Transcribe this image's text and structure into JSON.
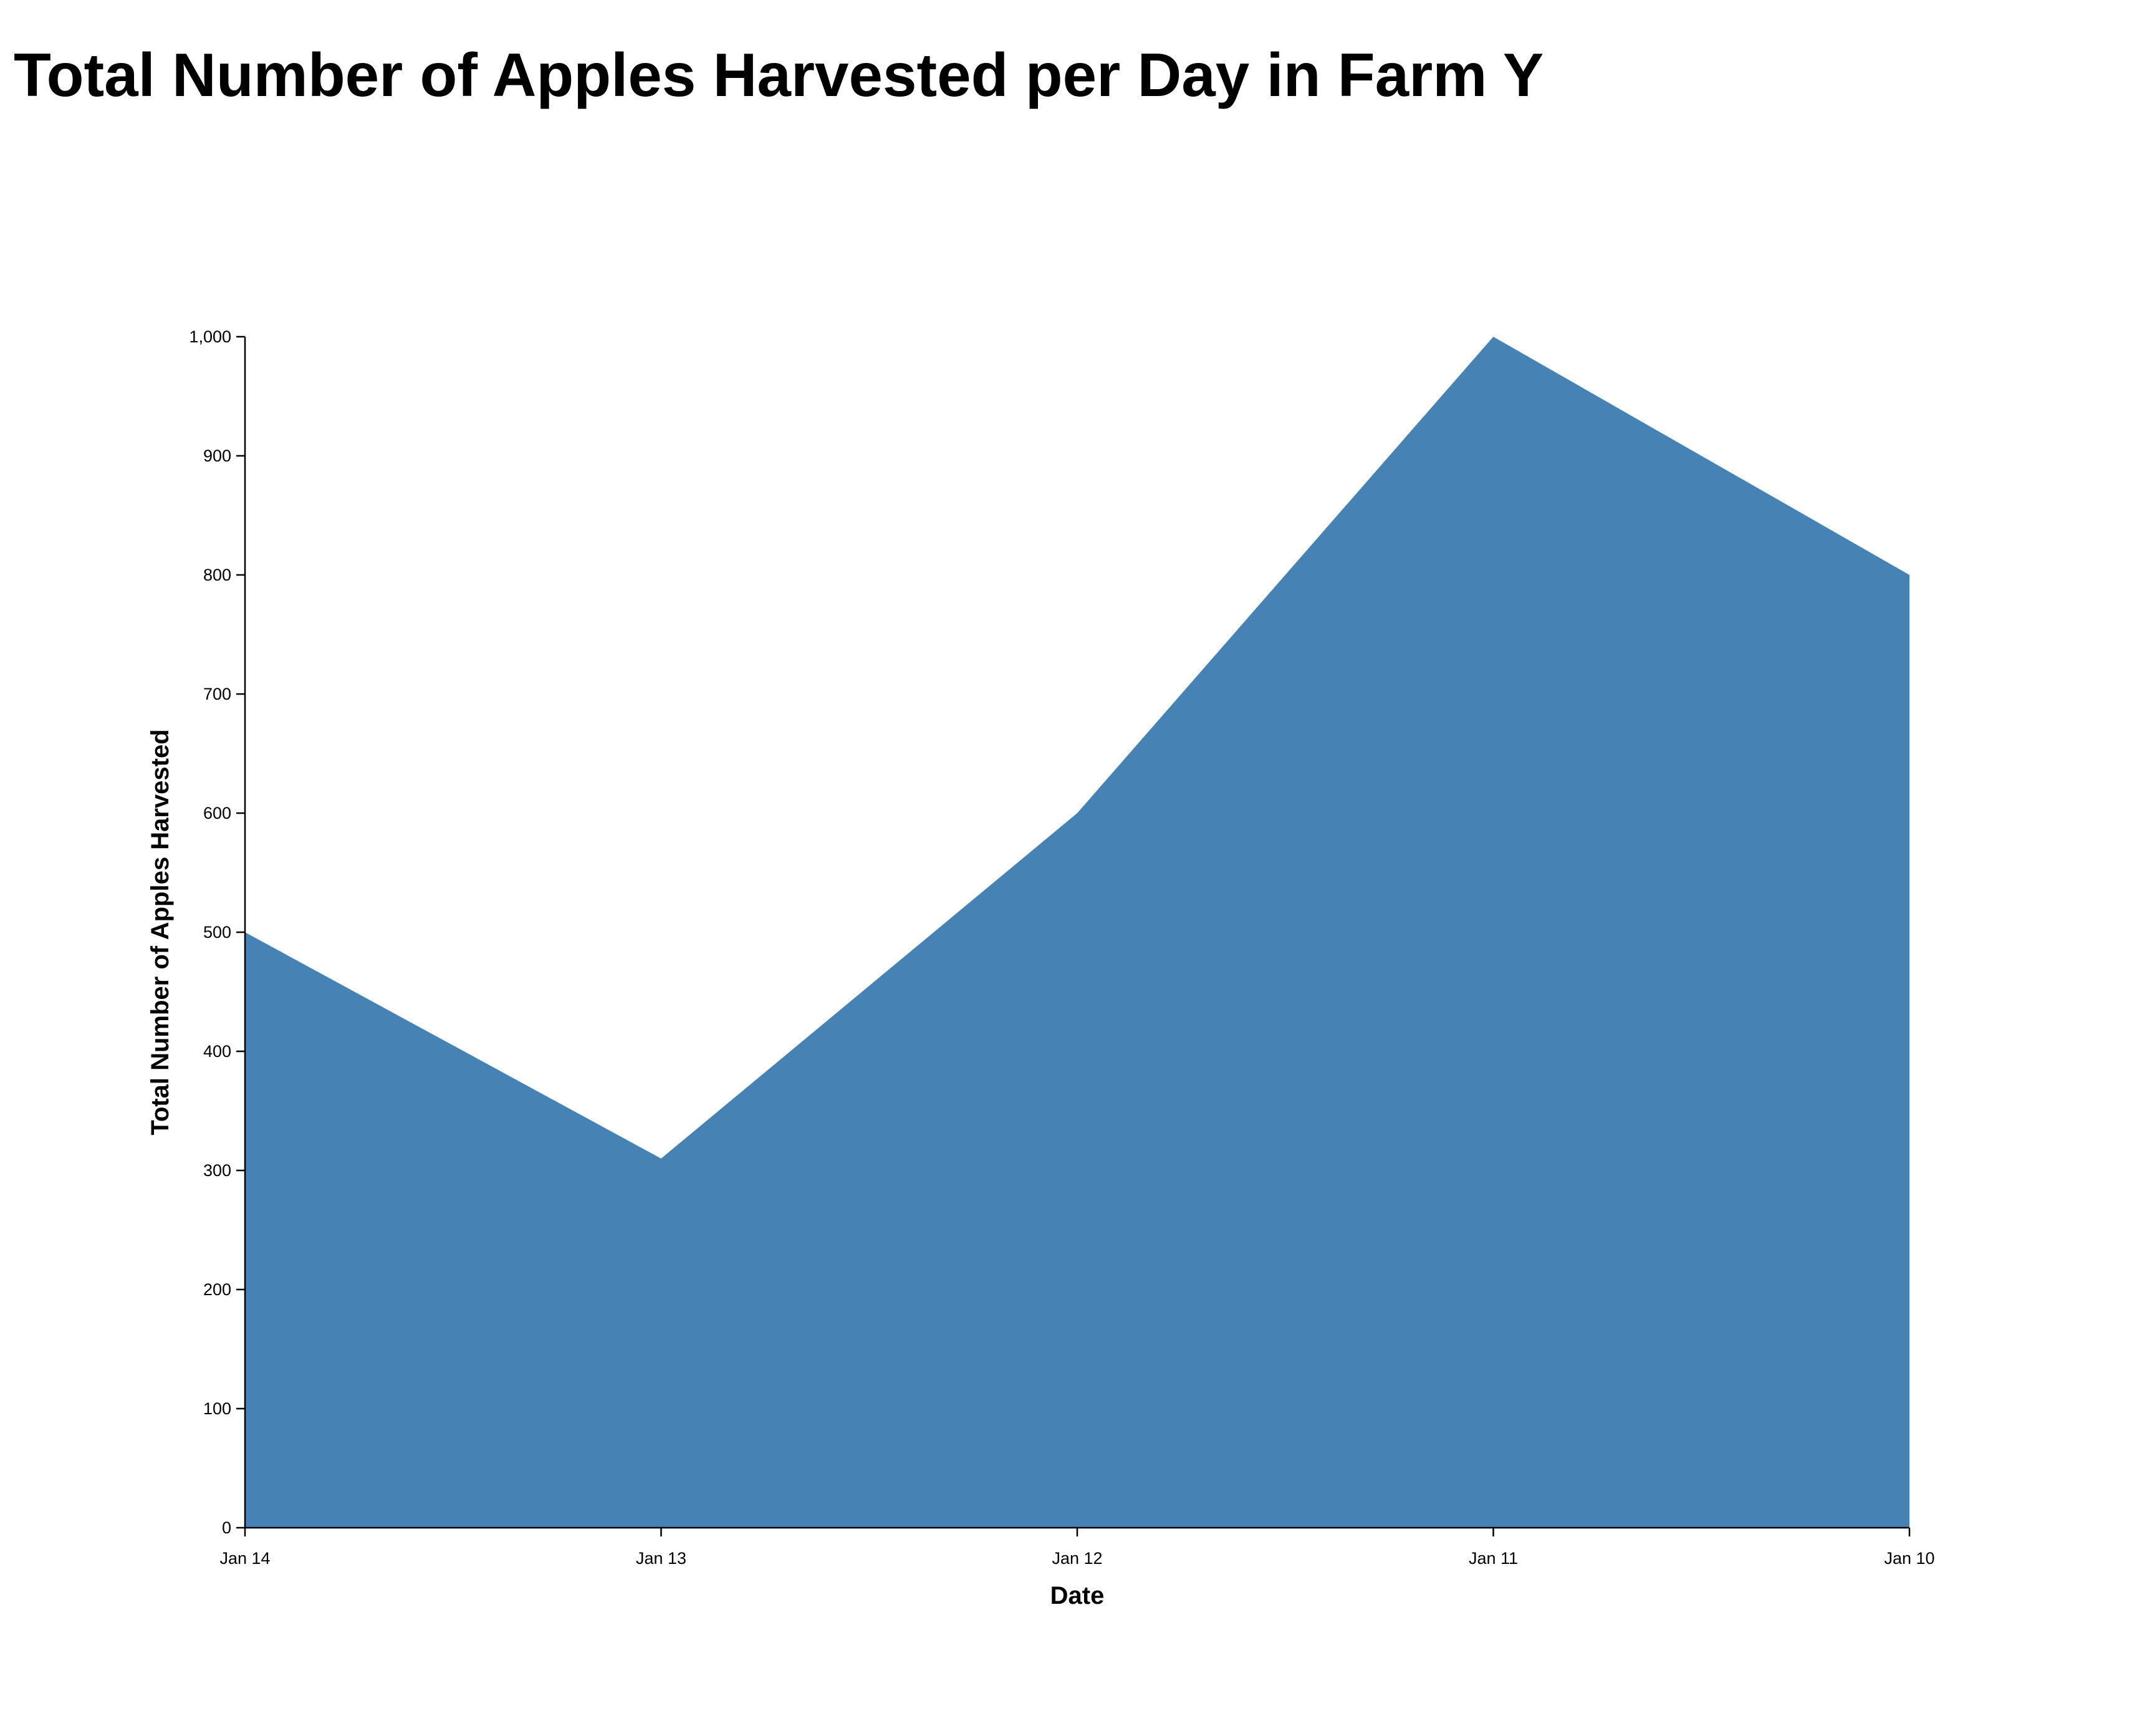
{
  "chart_data": {
    "type": "area",
    "title": "Total Number of Apples Harvested per Day in Farm Y",
    "xlabel": "Date",
    "ylabel": "Total Number of Apples Harvested",
    "categories": [
      "Jan 14",
      "Jan 13",
      "Jan 12",
      "Jan 11",
      "Jan 10"
    ],
    "values": [
      500,
      310,
      600,
      1000,
      800
    ],
    "ylim": [
      0,
      1000
    ],
    "yticks": [
      0,
      100,
      200,
      300,
      400,
      500,
      600,
      700,
      800,
      900,
      1000
    ],
    "ytick_labels": [
      "0",
      "100",
      "200",
      "300",
      "400",
      "500",
      "600",
      "700",
      "800",
      "900",
      "1,000"
    ],
    "grid": false,
    "legend": "none",
    "x_order": "descending",
    "color": "#4682b4"
  }
}
